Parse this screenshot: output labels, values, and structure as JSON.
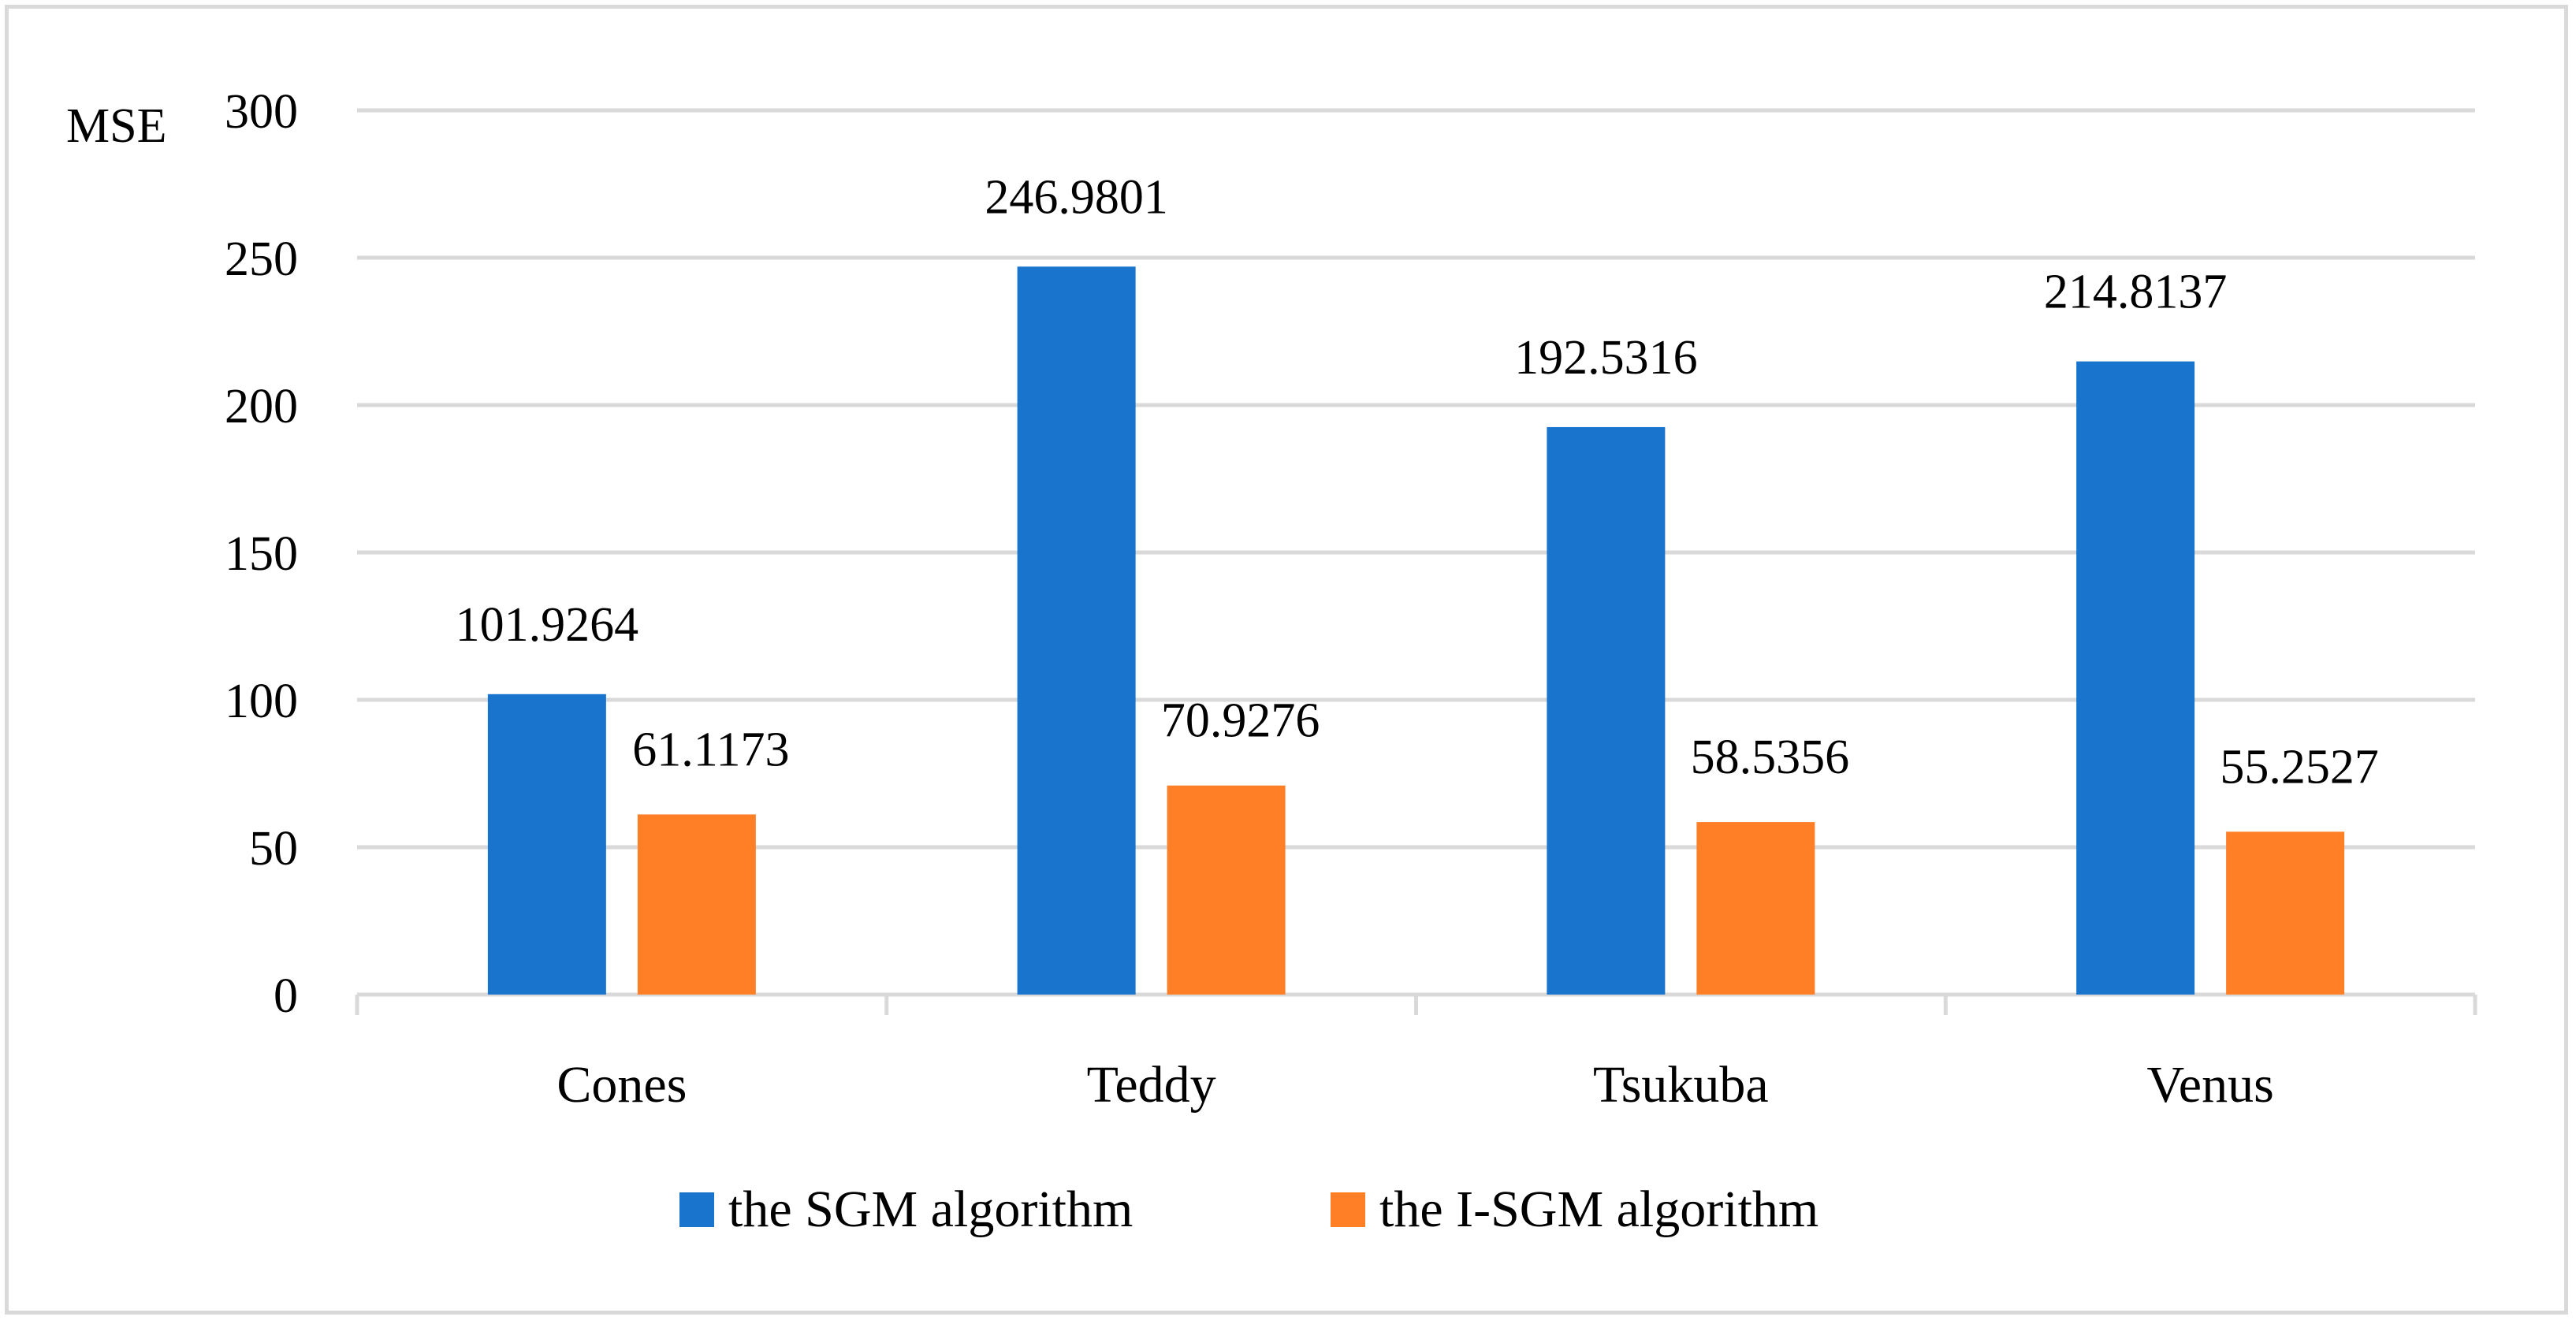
{
  "chart_data": {
    "type": "bar",
    "title": "",
    "xlabel": "",
    "ylabel": "MSE",
    "ylim": [
      0,
      300
    ],
    "yticks": [
      0,
      50,
      100,
      150,
      200,
      250,
      300
    ],
    "grid": true,
    "legend_position": "bottom",
    "categories": [
      "Cones",
      "Teddy",
      "Tsukuba",
      "Venus"
    ],
    "series": [
      {
        "name": "the SGM algorithm",
        "color": "#1874cd",
        "values": [
          101.9264,
          246.9801,
          192.5316,
          214.8137
        ],
        "labels": [
          "101.9264",
          "246.9801",
          "192.5316",
          "214.8137"
        ]
      },
      {
        "name": "the I-SGM algorithm",
        "color": "#ff7f27",
        "values": [
          61.1173,
          70.9276,
          58.5356,
          55.2527
        ],
        "labels": [
          "61.1173",
          "70.9276",
          "58.5356",
          "55.2527"
        ]
      }
    ]
  }
}
